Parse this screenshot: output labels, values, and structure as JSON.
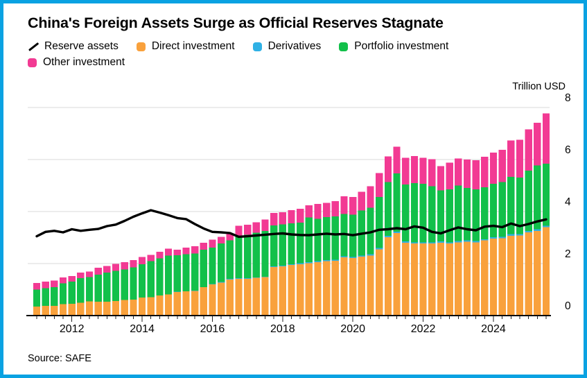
{
  "frame": {
    "border_color": "#0AA2E2",
    "background": "#FFFFFF"
  },
  "header": {
    "title": "China's Foreign Assets Surge as Official Reserves Stagnate"
  },
  "legend": {
    "rows": [
      [
        {
          "label": "Reserve assets",
          "marker": "line",
          "color": "#000000"
        },
        {
          "label": "Direct investment",
          "marker": "square",
          "color": "#F9A13C"
        },
        {
          "label": "Derivatives",
          "marker": "square",
          "color": "#2FB1E5"
        },
        {
          "label": "Portfolio investment",
          "marker": "square",
          "color": "#12C04A"
        }
      ],
      [
        {
          "label": "Other investment",
          "marker": "square",
          "color": "#F23A93"
        }
      ]
    ]
  },
  "axis": {
    "unit_label": "Trillion USD",
    "yticks": [
      0,
      2,
      4,
      6,
      8
    ],
    "ylim": [
      0,
      8
    ],
    "xtick_years": [
      "2012",
      "2014",
      "2016",
      "2018",
      "2020",
      "2022",
      "2024"
    ]
  },
  "footer": {
    "source": "Source: SAFE"
  },
  "chart_data": {
    "type": "bar",
    "stacked": true,
    "title": "China's Foreign Assets Surge as Official Reserves Stagnate",
    "unit": "Trillion USD",
    "ylim": [
      0,
      8
    ],
    "yticks": [
      0,
      2,
      4,
      6,
      8
    ],
    "grid": "horizontal",
    "legend_position": "top",
    "x": [
      "2011 Q1",
      "2011 Q2",
      "2011 Q3",
      "2011 Q4",
      "2012 Q1",
      "2012 Q2",
      "2012 Q3",
      "2012 Q4",
      "2013 Q1",
      "2013 Q2",
      "2013 Q3",
      "2013 Q4",
      "2014 Q1",
      "2014 Q2",
      "2014 Q3",
      "2014 Q4",
      "2015 Q1",
      "2015 Q2",
      "2015 Q3",
      "2015 Q4",
      "2016 Q1",
      "2016 Q2",
      "2016 Q3",
      "2016 Q4",
      "2017 Q1",
      "2017 Q2",
      "2017 Q3",
      "2017 Q4",
      "2018 Q1",
      "2018 Q2",
      "2018 Q3",
      "2018 Q4",
      "2019 Q1",
      "2019 Q2",
      "2019 Q3",
      "2019 Q4",
      "2020 Q1",
      "2020 Q2",
      "2020 Q3",
      "2020 Q4",
      "2021 Q1",
      "2021 Q2",
      "2021 Q3",
      "2021 Q4",
      "2022 Q1",
      "2022 Q2",
      "2022 Q3",
      "2022 Q4",
      "2023 Q1",
      "2023 Q2",
      "2023 Q3",
      "2023 Q4",
      "2024 Q1",
      "2024 Q2",
      "2024 Q3",
      "2024 Q4",
      "2025 Q1",
      "2025 Q2",
      "2025 Q3"
    ],
    "series": [
      {
        "name": "Direct investment",
        "role": "bar",
        "color": "#F9A13C",
        "values": [
          0.35,
          0.37,
          0.38,
          0.44,
          0.46,
          0.49,
          0.55,
          0.53,
          0.54,
          0.56,
          0.6,
          0.62,
          0.69,
          0.71,
          0.78,
          0.82,
          0.91,
          0.93,
          0.95,
          1.09,
          1.2,
          1.27,
          1.39,
          1.42,
          1.42,
          1.45,
          1.48,
          1.87,
          1.89,
          1.95,
          1.98,
          2.02,
          2.06,
          2.09,
          2.11,
          2.24,
          2.22,
          2.27,
          2.31,
          2.55,
          3.02,
          3.18,
          2.8,
          2.77,
          2.77,
          2.77,
          2.8,
          2.77,
          2.82,
          2.84,
          2.82,
          2.89,
          2.96,
          2.98,
          3.07,
          3.08,
          3.2,
          3.26,
          3.4
        ]
      },
      {
        "name": "Derivatives",
        "role": "bar",
        "color": "#2FB1E5",
        "values": [
          0,
          0,
          0,
          0,
          0,
          0,
          0,
          0,
          0,
          0,
          0,
          0,
          0,
          0,
          0,
          0,
          0.01,
          0.01,
          0.01,
          0.01,
          0.01,
          0.02,
          0.02,
          0.02,
          0.02,
          0.02,
          0.02,
          0.03,
          0.03,
          0.03,
          0.03,
          0.03,
          0.04,
          0.04,
          0.04,
          0.04,
          0.04,
          0.04,
          0.05,
          0.05,
          0.05,
          0.05,
          0.05,
          0.05,
          0.05,
          0.05,
          0.05,
          0.05,
          0.05,
          0.05,
          0.05,
          0.05,
          0.05,
          0.05,
          0.06,
          0.06,
          0.06,
          0.06,
          0.06
        ]
      },
      {
        "name": "Portfolio investment",
        "role": "bar",
        "color": "#12C04A",
        "values": [
          0.65,
          0.69,
          0.72,
          0.8,
          0.85,
          0.95,
          0.93,
          1.05,
          1.11,
          1.16,
          1.18,
          1.23,
          1.28,
          1.38,
          1.42,
          1.49,
          1.4,
          1.42,
          1.43,
          1.43,
          1.41,
          1.49,
          1.48,
          1.63,
          1.67,
          1.72,
          1.76,
          1.57,
          1.59,
          1.57,
          1.56,
          1.73,
          1.62,
          1.66,
          1.67,
          1.63,
          1.62,
          1.73,
          1.79,
          1.96,
          2.06,
          2.24,
          2.19,
          2.27,
          2.25,
          2.16,
          1.97,
          2.04,
          2.13,
          2.02,
          1.99,
          1.99,
          2.06,
          2.1,
          2.2,
          2.17,
          2.31,
          2.46,
          2.38
        ]
      },
      {
        "name": "Other investment",
        "role": "bar",
        "color": "#F23A93",
        "values": [
          0.25,
          0.25,
          0.25,
          0.23,
          0.21,
          0.22,
          0.22,
          0.26,
          0.26,
          0.27,
          0.27,
          0.28,
          0.28,
          0.25,
          0.25,
          0.27,
          0.22,
          0.25,
          0.28,
          0.27,
          0.3,
          0.25,
          0.25,
          0.39,
          0.38,
          0.4,
          0.43,
          0.48,
          0.47,
          0.5,
          0.54,
          0.46,
          0.57,
          0.55,
          0.58,
          0.68,
          0.68,
          0.72,
          0.83,
          0.92,
          0.99,
          1.02,
          1.03,
          1.04,
          1.0,
          1.04,
          0.93,
          1.02,
          1.04,
          1.09,
          1.12,
          1.18,
          1.2,
          1.24,
          1.4,
          1.45,
          1.59,
          1.64,
          1.94
        ]
      },
      {
        "name": "Reserve assets",
        "role": "line",
        "color": "#000000",
        "values": [
          3.05,
          3.22,
          3.26,
          3.2,
          3.32,
          3.26,
          3.3,
          3.33,
          3.44,
          3.5,
          3.64,
          3.8,
          3.93,
          4.05,
          3.96,
          3.86,
          3.75,
          3.71,
          3.52,
          3.35,
          3.22,
          3.2,
          3.17,
          3.03,
          3.05,
          3.08,
          3.11,
          3.14,
          3.16,
          3.12,
          3.1,
          3.09,
          3.12,
          3.15,
          3.12,
          3.14,
          3.09,
          3.15,
          3.2,
          3.3,
          3.32,
          3.36,
          3.32,
          3.43,
          3.38,
          3.22,
          3.16,
          3.28,
          3.39,
          3.32,
          3.28,
          3.42,
          3.45,
          3.4,
          3.54,
          3.44,
          3.52,
          3.62,
          3.7
        ]
      }
    ],
    "source": "SAFE"
  }
}
